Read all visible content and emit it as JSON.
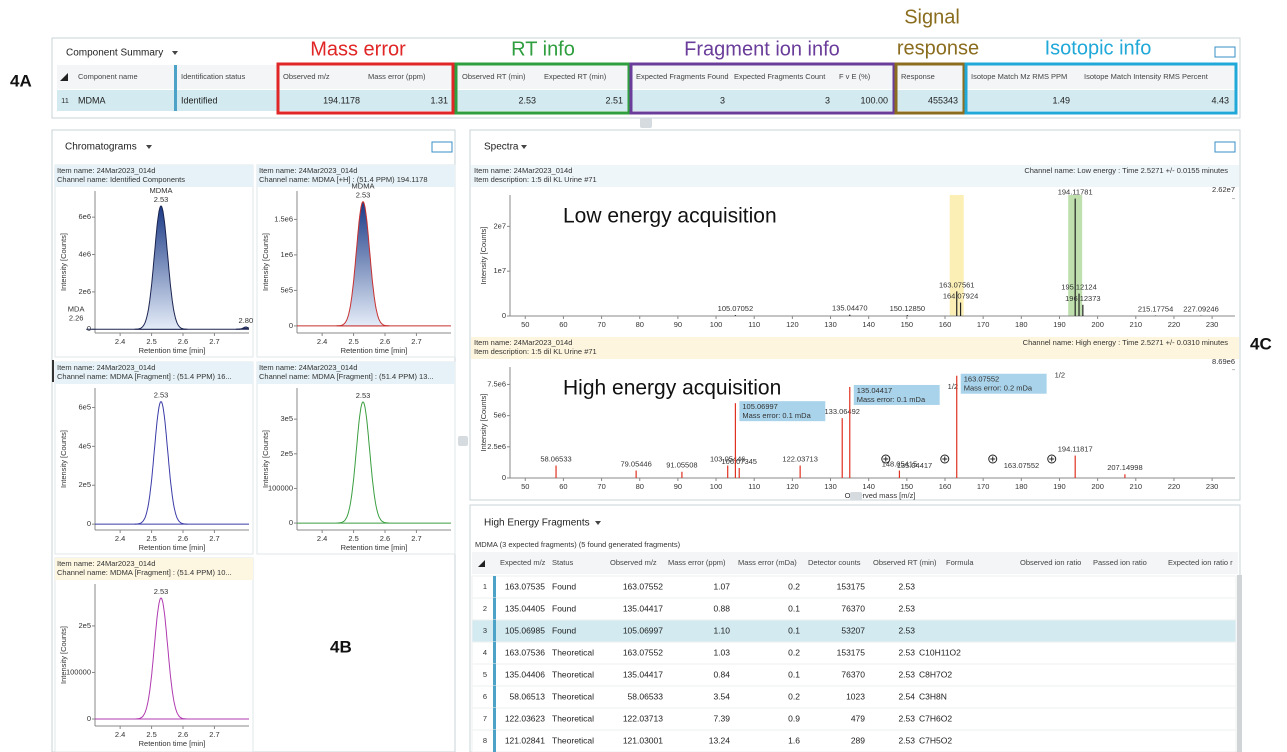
{
  "figure_labels": {
    "a": "4A",
    "b": "4B",
    "c": "4C"
  },
  "info_groups": {
    "mass_error": "Mass error",
    "rt_info": "RT info",
    "fragment_ion_info": "Fragment ion info",
    "signal_response": [
      "Signal",
      "response"
    ],
    "isotopic_info": "Isotopic info"
  },
  "component_summary": {
    "title": "Component Summary",
    "columns": [
      "Component name",
      "Identification status",
      "Observed m/z",
      "Mass error (ppm)",
      "Observed RT (min)",
      "Expected RT (min)",
      "Expected Fragments Found",
      "Expected Fragments Count",
      "F v E (%)",
      "Response",
      "Isotope Match Mz RMS PPM",
      "Isotope Match Intensity RMS Percent"
    ],
    "row": {
      "index": "11",
      "cells": [
        "MDMA",
        "Identified",
        "194.1178",
        "1.31",
        "2.53",
        "2.51",
        "3",
        "3",
        "100.00",
        "455343",
        "1.49",
        "4.43"
      ]
    }
  },
  "chromatograms": {
    "title": "Chromatograms",
    "x_label": "Retention time [min]",
    "y_label": "Intensity [Counts]",
    "xlim": [
      2.32,
      2.81
    ],
    "xticks": [
      2.4,
      2.5,
      2.6,
      2.7
    ],
    "panels": [
      {
        "item": "Item name: 24Mar2023_014d",
        "channel": "Channel name: Identified Components",
        "color": "#1b2450",
        "filled": true,
        "ylim": [
          -200000,
          7400000
        ],
        "yticks": [
          0,
          {
            "value": 2000000,
            "label": "2e6"
          },
          {
            "value": 4000000,
            "label": "4e6"
          },
          {
            "value": 6000000,
            "label": "6e6"
          }
        ],
        "peaks": [
          {
            "name": "MDA",
            "rt": 2.26,
            "label": "2.26",
            "height": 250000
          },
          {
            "name": "MDMA",
            "rt": 2.53,
            "label": "2.53",
            "height": 6600000
          },
          {
            "rt": 2.8,
            "label": "2.80",
            "height": 120000
          }
        ]
      },
      {
        "item": "Item name: 24Mar2023_014d",
        "channel": "Channel name: MDMA [+H] : (51.4 PPM) 194.1178",
        "color": "#c83030",
        "filled": true,
        "ylim": [
          -100000,
          1900000
        ],
        "yticks": [
          0,
          {
            "value": 500000,
            "label": "5e5"
          },
          {
            "value": 1000000,
            "label": "1e6"
          },
          {
            "value": 1500000,
            "label": "1.5e6"
          }
        ],
        "peaks": [
          {
            "name": "MDMA",
            "rt": 2.53,
            "label": "2.53",
            "height": 1750000
          }
        ]
      },
      {
        "item": "Item name: 24Mar2023_014d",
        "channel": "Channel name: MDMA [Fragment] : (51.4 PPM) 16...",
        "color": "#3b3ba8",
        "filled": false,
        "ylim": [
          -30000,
          700000
        ],
        "yticks": [
          0,
          {
            "value": 200000,
            "label": "2e5"
          },
          {
            "value": 400000,
            "label": "4e5"
          },
          {
            "value": 600000,
            "label": "6e5"
          }
        ],
        "peaks": [
          {
            "rt": 2.53,
            "label": "2.53",
            "height": 630000
          }
        ]
      },
      {
        "item": "Item name: 24Mar2023_014d",
        "channel": "Channel name: MDMA [Fragment] : (51.4 PPM) 13...",
        "color": "#3a9e40",
        "filled": false,
        "ylim": [
          -20000,
          390000
        ],
        "yticks": [
          0,
          100000,
          {
            "value": 200000,
            "label": "2e5"
          },
          {
            "value": 300000,
            "label": "3e5"
          }
        ],
        "peaks": [
          {
            "rt": 2.53,
            "label": "2.53",
            "height": 350000
          }
        ]
      },
      {
        "item": "Item name: 24Mar2023_014d",
        "channel": "Channel name: MDMA [Fragment] : (51.4 PPM) 10...",
        "color": "#b03ab0",
        "filled": false,
        "ylim": [
          -15000,
          290000
        ],
        "yticks": [
          0,
          100000,
          {
            "value": 200000,
            "label": "2e5"
          }
        ],
        "peaks": [
          {
            "rt": 2.53,
            "label": "2.53",
            "height": 260000
          }
        ]
      }
    ]
  },
  "spectra": {
    "title": "Spectra",
    "x_label": "Observed mass [m/z]",
    "y_label": "Intensity [Counts]",
    "xlim": [
      46,
      236
    ],
    "xticks": [
      50,
      60,
      70,
      80,
      90,
      100,
      110,
      120,
      130,
      140,
      150,
      160,
      170,
      180,
      190,
      200,
      210,
      220,
      230
    ],
    "panels": [
      {
        "item": "Item name: 24Mar2023_014d",
        "description": "Item description: 1:5 dil KL Urine #71",
        "channel": "Channel name: Low energy : Time 2.5271 +/- 0.0155 minutes",
        "acquisition": "Low energy acquisition",
        "color": "#222222",
        "max_intensity": {
          "value": 26200000,
          "label": "2.62e7"
        },
        "ylim": [
          0,
          27000000
        ],
        "yticks": [
          0,
          {
            "value": 10000000,
            "label": "1e7"
          },
          {
            "value": 20000000,
            "label": "2e7"
          }
        ],
        "peaks": [
          {
            "mz": 105.07052,
            "label": "105.07052",
            "intensity": 200000
          },
          {
            "mz": 135.0447,
            "label": "135.04470",
            "intensity": 300000
          },
          {
            "mz": 150.1285,
            "label": "150.12850",
            "intensity": 200000
          },
          {
            "mz": 163.07561,
            "label": "163.07561",
            "intensity": 5500000,
            "highlight": "#fbefb6"
          },
          {
            "mz": 164.07924,
            "label": "164.07924",
            "intensity": 3000000
          },
          {
            "mz": 194.11781,
            "label": "194.11781",
            "intensity": 26200000,
            "highlight": "#bfe0ae"
          },
          {
            "mz": 195.12124,
            "label": "195.12124",
            "intensity": 5000000
          },
          {
            "mz": 196.12373,
            "label": "196.12373",
            "intensity": 2500000
          },
          {
            "mz": 215.17754,
            "label": "215.17754",
            "intensity": 100000
          },
          {
            "mz": 227.09246,
            "label": "227.09246",
            "intensity": 100000
          }
        ]
      },
      {
        "item": "Item name: 24Mar2023_014d",
        "description": "Item description: 1:5 dil KL Urine #71",
        "channel": "Channel name: High energy : Time 2.5271 +/- 0.0310 minutes",
        "acquisition": "High energy acquisition",
        "color": "#e03020",
        "max_intensity": {
          "value": 8690000,
          "label": "8.69e6"
        },
        "ylim": [
          0,
          8900000
        ],
        "yticks": [
          0,
          {
            "value": 2500000,
            "label": "2.5e6"
          },
          {
            "value": 5000000,
            "label": "5e6"
          },
          {
            "value": 7500000,
            "label": "7.5e6"
          }
        ],
        "peaks": [
          {
            "mz": 58.06533,
            "label": "58.06533",
            "intensity": 1000000
          },
          {
            "mz": 79.05446,
            "label": "79.05446",
            "intensity": 600000
          },
          {
            "mz": 91.05508,
            "label": "91.05508",
            "intensity": 500000
          },
          {
            "mz": 103.05446,
            "label": "103.05446",
            "intensity": 1000000
          },
          {
            "mz": 105.06997,
            "label": "105.06997",
            "intensity": 6000000,
            "annotation": "Mass error: 0.1 mDa"
          },
          {
            "mz": 106.07345,
            "label": "106.07345",
            "intensity": 800000
          },
          {
            "mz": 122.03713,
            "label": "122.03713",
            "intensity": 1000000
          },
          {
            "mz": 133.06492,
            "label": "133.06492",
            "intensity": 4800000
          },
          {
            "mz": 135.04417,
            "label": "135.04417",
            "intensity": 7300000,
            "annotation": "Mass error: 0.1 mDa",
            "tag": "1/2"
          },
          {
            "mz": 148.05415,
            "label": "148.05415",
            "intensity": 600000
          },
          {
            "mz": 163.07552,
            "label": "163.07552",
            "intensity": 8200000,
            "annotation": "Mass error: 0.2 mDa",
            "tag": "1/2"
          },
          {
            "mz": 194.11817,
            "label": "194.11817",
            "intensity": 1800000
          },
          {
            "mz": 207.14998,
            "label": "207.14998",
            "intensity": 300000
          }
        ],
        "markers": [
          {
            "mz": 135.04417,
            "label": "135.04417"
          },
          {
            "mz": 163.07552,
            "label": "163.07552"
          }
        ]
      }
    ]
  },
  "fragments": {
    "title": "High Energy Fragments",
    "subtitle": "MDMA (3 expected fragments) (5 found generated fragments)",
    "columns": [
      "Expected m/z",
      "Status",
      "Observed m/z",
      "Mass error (ppm)",
      "Mass error (mDa)",
      "Detector counts",
      "Observed RT (min)",
      "Formula",
      "Observed ion ratio",
      "Passed ion ratio",
      "Expected ion ratio r"
    ],
    "rows": [
      [
        "1",
        "163.07535",
        "Found",
        "163.07552",
        "1.07",
        "0.2",
        "153175",
        "2.53"
      ],
      [
        "2",
        "135.04405",
        "Found",
        "135.04417",
        "0.88",
        "0.1",
        "76370",
        "2.53"
      ],
      [
        "3",
        "105.06985",
        "Found",
        "105.06997",
        "1.10",
        "0.1",
        "53207",
        "2.53"
      ],
      [
        "4",
        "163.07536",
        "Theoretical",
        "163.07552",
        "1.03",
        "0.2",
        "153175",
        "2.53",
        "C10H11O2"
      ],
      [
        "5",
        "135.04406",
        "Theoretical",
        "135.04417",
        "0.84",
        "0.1",
        "76370",
        "2.53",
        "C8H7O2"
      ],
      [
        "6",
        "58.06513",
        "Theoretical",
        "58.06533",
        "3.54",
        "0.2",
        "1023",
        "2.54",
        "C3H8N"
      ],
      [
        "7",
        "122.03623",
        "Theoretical",
        "122.03713",
        "7.39",
        "0.9",
        "479",
        "2.53",
        "C7H6O2"
      ],
      [
        "8",
        "121.02841",
        "Theoretical",
        "121.03001",
        "13.24",
        "1.6",
        "289",
        "2.53",
        "C7H5O2"
      ]
    ]
  }
}
